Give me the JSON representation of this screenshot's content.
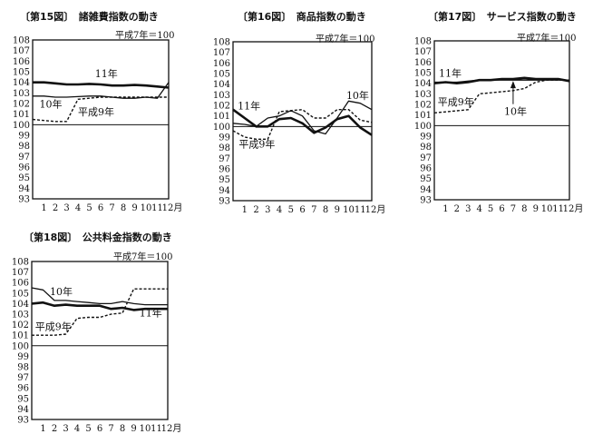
{
  "chart_data": [
    {
      "type": "line",
      "title": "〔第15図〕　諸雑費指数の動き",
      "base_note": "平成7年＝100",
      "x": [
        0,
        1,
        2,
        3,
        4,
        5,
        6,
        7,
        8,
        9,
        10,
        11,
        12
      ],
      "xtick_labels": [
        "1",
        "2",
        "3",
        "4",
        "5",
        "6",
        "7",
        "8",
        "9",
        "10",
        "11",
        "12月"
      ],
      "ylim": [
        93,
        108
      ],
      "yticks": [
        93,
        94,
        95,
        96,
        97,
        98,
        99,
        100,
        101,
        102,
        103,
        104,
        105,
        106,
        107,
        108
      ],
      "reference_line": 100,
      "series": [
        {
          "name": "11年",
          "style": "thick",
          "values": [
            104.0,
            104.0,
            103.9,
            103.8,
            103.8,
            103.85,
            103.8,
            103.7,
            103.7,
            103.75,
            103.7,
            103.6,
            103.5
          ],
          "label_at": [
            5.5,
            104.5
          ]
        },
        {
          "name": "10年",
          "style": "thin",
          "values": [
            102.7,
            102.7,
            102.6,
            102.6,
            102.65,
            102.7,
            102.7,
            102.6,
            102.5,
            102.5,
            102.6,
            102.5,
            104.0
          ],
          "label_at": [
            0.6,
            101.6
          ]
        },
        {
          "name": "平成9年",
          "style": "dashed",
          "values": [
            100.5,
            100.4,
            100.3,
            100.3,
            102.4,
            102.5,
            102.6,
            102.6,
            102.6,
            102.6,
            102.6,
            102.6,
            102.6
          ],
          "label_at": [
            4,
            100.9
          ]
        }
      ]
    },
    {
      "type": "line",
      "title": "〔第16図〕　商品指数の動き",
      "base_note": "平成7年＝100",
      "x": [
        0,
        1,
        2,
        3,
        4,
        5,
        6,
        7,
        8,
        9,
        10,
        11,
        12
      ],
      "xtick_labels": [
        "1",
        "2",
        "3",
        "4",
        "5",
        "6",
        "7",
        "8",
        "9",
        "10",
        "11",
        "12月"
      ],
      "ylim": [
        93,
        108
      ],
      "yticks": [
        93,
        94,
        95,
        96,
        97,
        98,
        99,
        100,
        101,
        102,
        103,
        104,
        105,
        106,
        107,
        108
      ],
      "reference_line": 100,
      "series": [
        {
          "name": "11年",
          "style": "thick",
          "values": [
            101.6,
            100.8,
            100.0,
            100.0,
            100.7,
            100.8,
            100.3,
            99.4,
            99.9,
            100.7,
            101.0,
            99.9,
            99.2
          ],
          "label_at": [
            0.4,
            101.6
          ]
        },
        {
          "name": "10年",
          "style": "thin",
          "values": [
            100.3,
            100.2,
            100.0,
            100.8,
            101.0,
            101.5,
            101.0,
            99.6,
            99.3,
            100.8,
            102.4,
            102.2,
            101.6
          ],
          "label_at": [
            9.8,
            102.6
          ]
        },
        {
          "name": "平成9年",
          "style": "dashed",
          "values": [
            99.6,
            99.0,
            98.8,
            98.8,
            101.4,
            101.5,
            101.6,
            100.8,
            100.8,
            101.6,
            101.6,
            100.6,
            100.4
          ],
          "label_at": [
            0.5,
            98.0
          ]
        }
      ]
    },
    {
      "type": "line",
      "title": "〔第17図〕　サービス指数の動き",
      "base_note": "平成7年＝100",
      "x": [
        0,
        1,
        2,
        3,
        4,
        5,
        6,
        7,
        8,
        9,
        10,
        11,
        12
      ],
      "xtick_labels": [
        "1",
        "2",
        "3",
        "4",
        "5",
        "6",
        "7",
        "8",
        "9",
        "10",
        "11",
        "12月"
      ],
      "ylim": [
        93,
        108
      ],
      "yticks": [
        93,
        94,
        95,
        96,
        97,
        98,
        99,
        100,
        101,
        102,
        103,
        104,
        105,
        106,
        107,
        108
      ],
      "reference_line": 100,
      "series": [
        {
          "name": "11年",
          "style": "thick",
          "values": [
            104.0,
            104.1,
            104.0,
            104.1,
            104.3,
            104.3,
            104.4,
            104.4,
            104.5,
            104.4,
            104.4,
            104.4,
            104.2
          ],
          "label_at": [
            0.4,
            104.6
          ]
        },
        {
          "name": "10年",
          "style": "thin",
          "values": [
            104.1,
            104.1,
            104.1,
            104.2,
            104.3,
            104.3,
            104.3,
            104.3,
            104.3,
            104.3,
            104.3,
            104.3,
            104.3
          ],
          "label_at": [
            6.2,
            101.0
          ],
          "arrow_to": [
            7,
            104.3
          ]
        },
        {
          "name": "平成9年",
          "style": "dashed",
          "values": [
            101.2,
            101.3,
            101.4,
            101.5,
            103.0,
            103.1,
            103.2,
            103.3,
            103.5,
            104.1,
            104.3,
            104.3,
            104.3
          ],
          "label_at": [
            0.3,
            101.9
          ]
        }
      ]
    },
    {
      "type": "line",
      "title": "〔第18図〕　公共料金指数の動き",
      "base_note": "平成7年＝100",
      "x": [
        0,
        1,
        2,
        3,
        4,
        5,
        6,
        7,
        8,
        9,
        10,
        11,
        12
      ],
      "xtick_labels": [
        "1",
        "2",
        "3",
        "4",
        "5",
        "6",
        "7",
        "8",
        "9",
        "10",
        "11",
        "12月"
      ],
      "ylim": [
        93,
        108
      ],
      "yticks": [
        93,
        94,
        95,
        96,
        97,
        98,
        99,
        100,
        101,
        102,
        103,
        104,
        105,
        106,
        107,
        108
      ],
      "reference_line": 100,
      "series": [
        {
          "name": "10年",
          "style": "thin",
          "values": [
            105.5,
            105.3,
            104.3,
            104.3,
            104.2,
            104.1,
            104.0,
            104.0,
            104.2,
            104.0,
            103.9,
            103.9,
            103.9
          ],
          "label_at": [
            1.6,
            104.8
          ]
        },
        {
          "name": "11年",
          "style": "thick",
          "values": [
            104.0,
            104.1,
            103.8,
            103.9,
            103.8,
            103.8,
            103.8,
            103.5,
            103.6,
            103.4,
            103.5,
            103.5,
            103.5
          ],
          "label_at": [
            9.5,
            102.8
          ]
        },
        {
          "name": "平成9年",
          "style": "dashed",
          "values": [
            101.0,
            101.0,
            101.0,
            101.1,
            102.6,
            102.7,
            102.7,
            103.0,
            103.1,
            105.4,
            105.4,
            105.4,
            105.4
          ],
          "label_at": [
            0.3,
            101.5
          ]
        }
      ]
    }
  ]
}
